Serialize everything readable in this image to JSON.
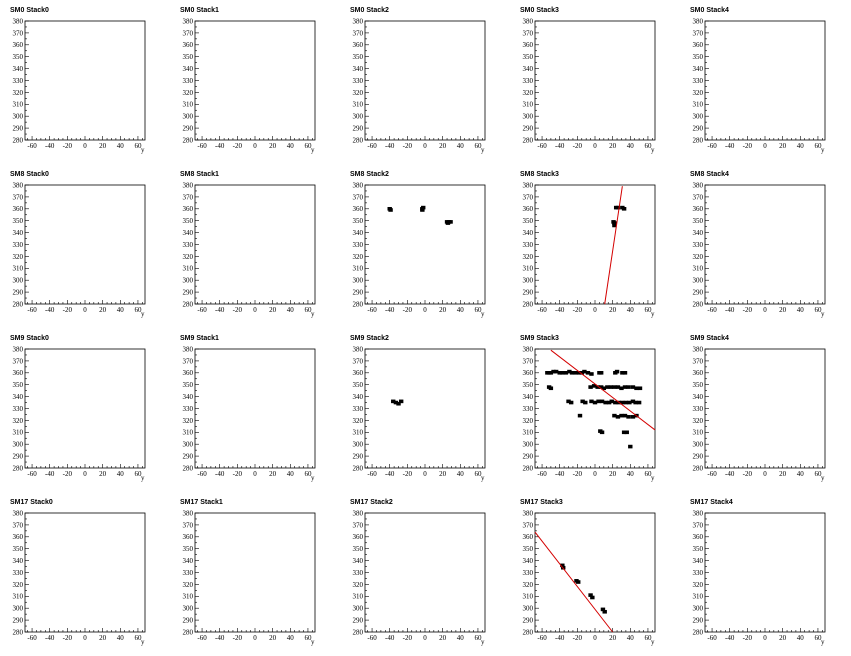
{
  "chart_data": {
    "type": "scatter",
    "xlabel": "y",
    "xlim": [
      -68,
      68
    ],
    "ylim": [
      280,
      380
    ],
    "xticks": [
      -60,
      -40,
      -20,
      0,
      20,
      40,
      60
    ],
    "yticks": [
      280,
      290,
      300,
      310,
      320,
      330,
      340,
      350,
      360,
      370,
      380
    ],
    "colors": {
      "hits": "#000000",
      "fit": "#d40000"
    },
    "panels": [
      {
        "title": "SM0 Stack0",
        "hits": [],
        "fit": null
      },
      {
        "title": "SM0 Stack1",
        "hits": [],
        "fit": null
      },
      {
        "title": "SM0 Stack2",
        "hits": [],
        "fit": null
      },
      {
        "title": "SM0 Stack3",
        "hits": [],
        "fit": null
      },
      {
        "title": "SM0 Stack4",
        "hits": [],
        "fit": null
      },
      {
        "title": "SM8 Stack0",
        "hits": [],
        "fit": null
      },
      {
        "title": "SM8 Stack1",
        "hits": [],
        "fit": null
      },
      {
        "title": "SM8 Stack2",
        "hits": [
          [
            -40,
            360
          ],
          [
            -39,
            359
          ],
          [
            -3,
            360
          ],
          [
            -3,
            359
          ],
          [
            -2,
            361
          ],
          [
            25,
            349
          ],
          [
            27,
            349
          ],
          [
            29,
            349
          ],
          [
            26,
            348
          ]
        ],
        "fit": null
      },
      {
        "title": "SM8 Stack3",
        "hits": [
          [
            21,
            349
          ],
          [
            22,
            348
          ],
          [
            24,
            361
          ],
          [
            26,
            361
          ],
          [
            31,
            361
          ],
          [
            33,
            360
          ],
          [
            22,
            346
          ]
        ],
        "fit": [
          [
            11,
            280
          ],
          [
            31,
            379
          ]
        ]
      },
      {
        "title": "SM8 Stack4",
        "hits": [],
        "fit": null
      },
      {
        "title": "SM9 Stack0",
        "hits": [],
        "fit": null
      },
      {
        "title": "SM9 Stack1",
        "hits": [],
        "fit": null
      },
      {
        "title": "SM9 Stack2",
        "hits": [
          [
            -36,
            336
          ],
          [
            -33,
            335
          ],
          [
            -30,
            334
          ],
          [
            -27,
            336
          ]
        ],
        "fit": null
      },
      {
        "title": "SM9 Stack3",
        "hits": [
          [
            -54,
            360
          ],
          [
            -52,
            360
          ],
          [
            -50,
            360
          ],
          [
            -47,
            361
          ],
          [
            -44,
            361
          ],
          [
            -40,
            360
          ],
          [
            -37,
            360
          ],
          [
            -33,
            360
          ],
          [
            -29,
            361
          ],
          [
            -26,
            360
          ],
          [
            -22,
            360
          ],
          [
            -18,
            360
          ],
          [
            -15,
            360
          ],
          [
            -12,
            361
          ],
          [
            -8,
            360
          ],
          [
            -4,
            359
          ],
          [
            5,
            360
          ],
          [
            7,
            360
          ],
          [
            23,
            360
          ],
          [
            25,
            361
          ],
          [
            31,
            360
          ],
          [
            34,
            360
          ],
          [
            -52,
            348
          ],
          [
            -50,
            347
          ],
          [
            -5,
            348
          ],
          [
            -1,
            349
          ],
          [
            3,
            348
          ],
          [
            7,
            348
          ],
          [
            10,
            347
          ],
          [
            14,
            348
          ],
          [
            18,
            348
          ],
          [
            22,
            348
          ],
          [
            26,
            348
          ],
          [
            30,
            347
          ],
          [
            34,
            348
          ],
          [
            38,
            348
          ],
          [
            43,
            348
          ],
          [
            47,
            347
          ],
          [
            51,
            347
          ],
          [
            -30,
            336
          ],
          [
            -27,
            335
          ],
          [
            -14,
            336
          ],
          [
            -11,
            335
          ],
          [
            -4,
            336
          ],
          [
            0,
            335
          ],
          [
            4,
            336
          ],
          [
            8,
            336
          ],
          [
            12,
            335
          ],
          [
            16,
            335
          ],
          [
            19,
            336
          ],
          [
            23,
            335
          ],
          [
            27,
            335
          ],
          [
            31,
            335
          ],
          [
            35,
            335
          ],
          [
            39,
            335
          ],
          [
            43,
            336
          ],
          [
            46,
            335
          ],
          [
            50,
            335
          ],
          [
            -17,
            324
          ],
          [
            22,
            324
          ],
          [
            26,
            323
          ],
          [
            30,
            324
          ],
          [
            34,
            324
          ],
          [
            38,
            323
          ],
          [
            43,
            323
          ],
          [
            47,
            324
          ],
          [
            6,
            311
          ],
          [
            8,
            310
          ],
          [
            33,
            310
          ],
          [
            36,
            310
          ],
          [
            40,
            298
          ]
        ],
        "fit": [
          [
            -50,
            379
          ],
          [
            68,
            312
          ]
        ]
      },
      {
        "title": "SM9 Stack4",
        "hits": [],
        "fit": null
      },
      {
        "title": "SM17 Stack0",
        "hits": [],
        "fit": null
      },
      {
        "title": "SM17 Stack1",
        "hits": [],
        "fit": null
      },
      {
        "title": "SM17 Stack2",
        "hits": [],
        "fit": null
      },
      {
        "title": "SM17 Stack3",
        "hits": [
          [
            -37,
            336
          ],
          [
            -36,
            334
          ],
          [
            -21,
            323
          ],
          [
            -19,
            322
          ],
          [
            -5,
            311
          ],
          [
            -3,
            309
          ],
          [
            9,
            299
          ],
          [
            11,
            297
          ]
        ],
        "fit": [
          [
            -68,
            364
          ],
          [
            20,
            280
          ]
        ]
      },
      {
        "title": "SM17 Stack4",
        "hits": [],
        "fit": null
      }
    ]
  }
}
